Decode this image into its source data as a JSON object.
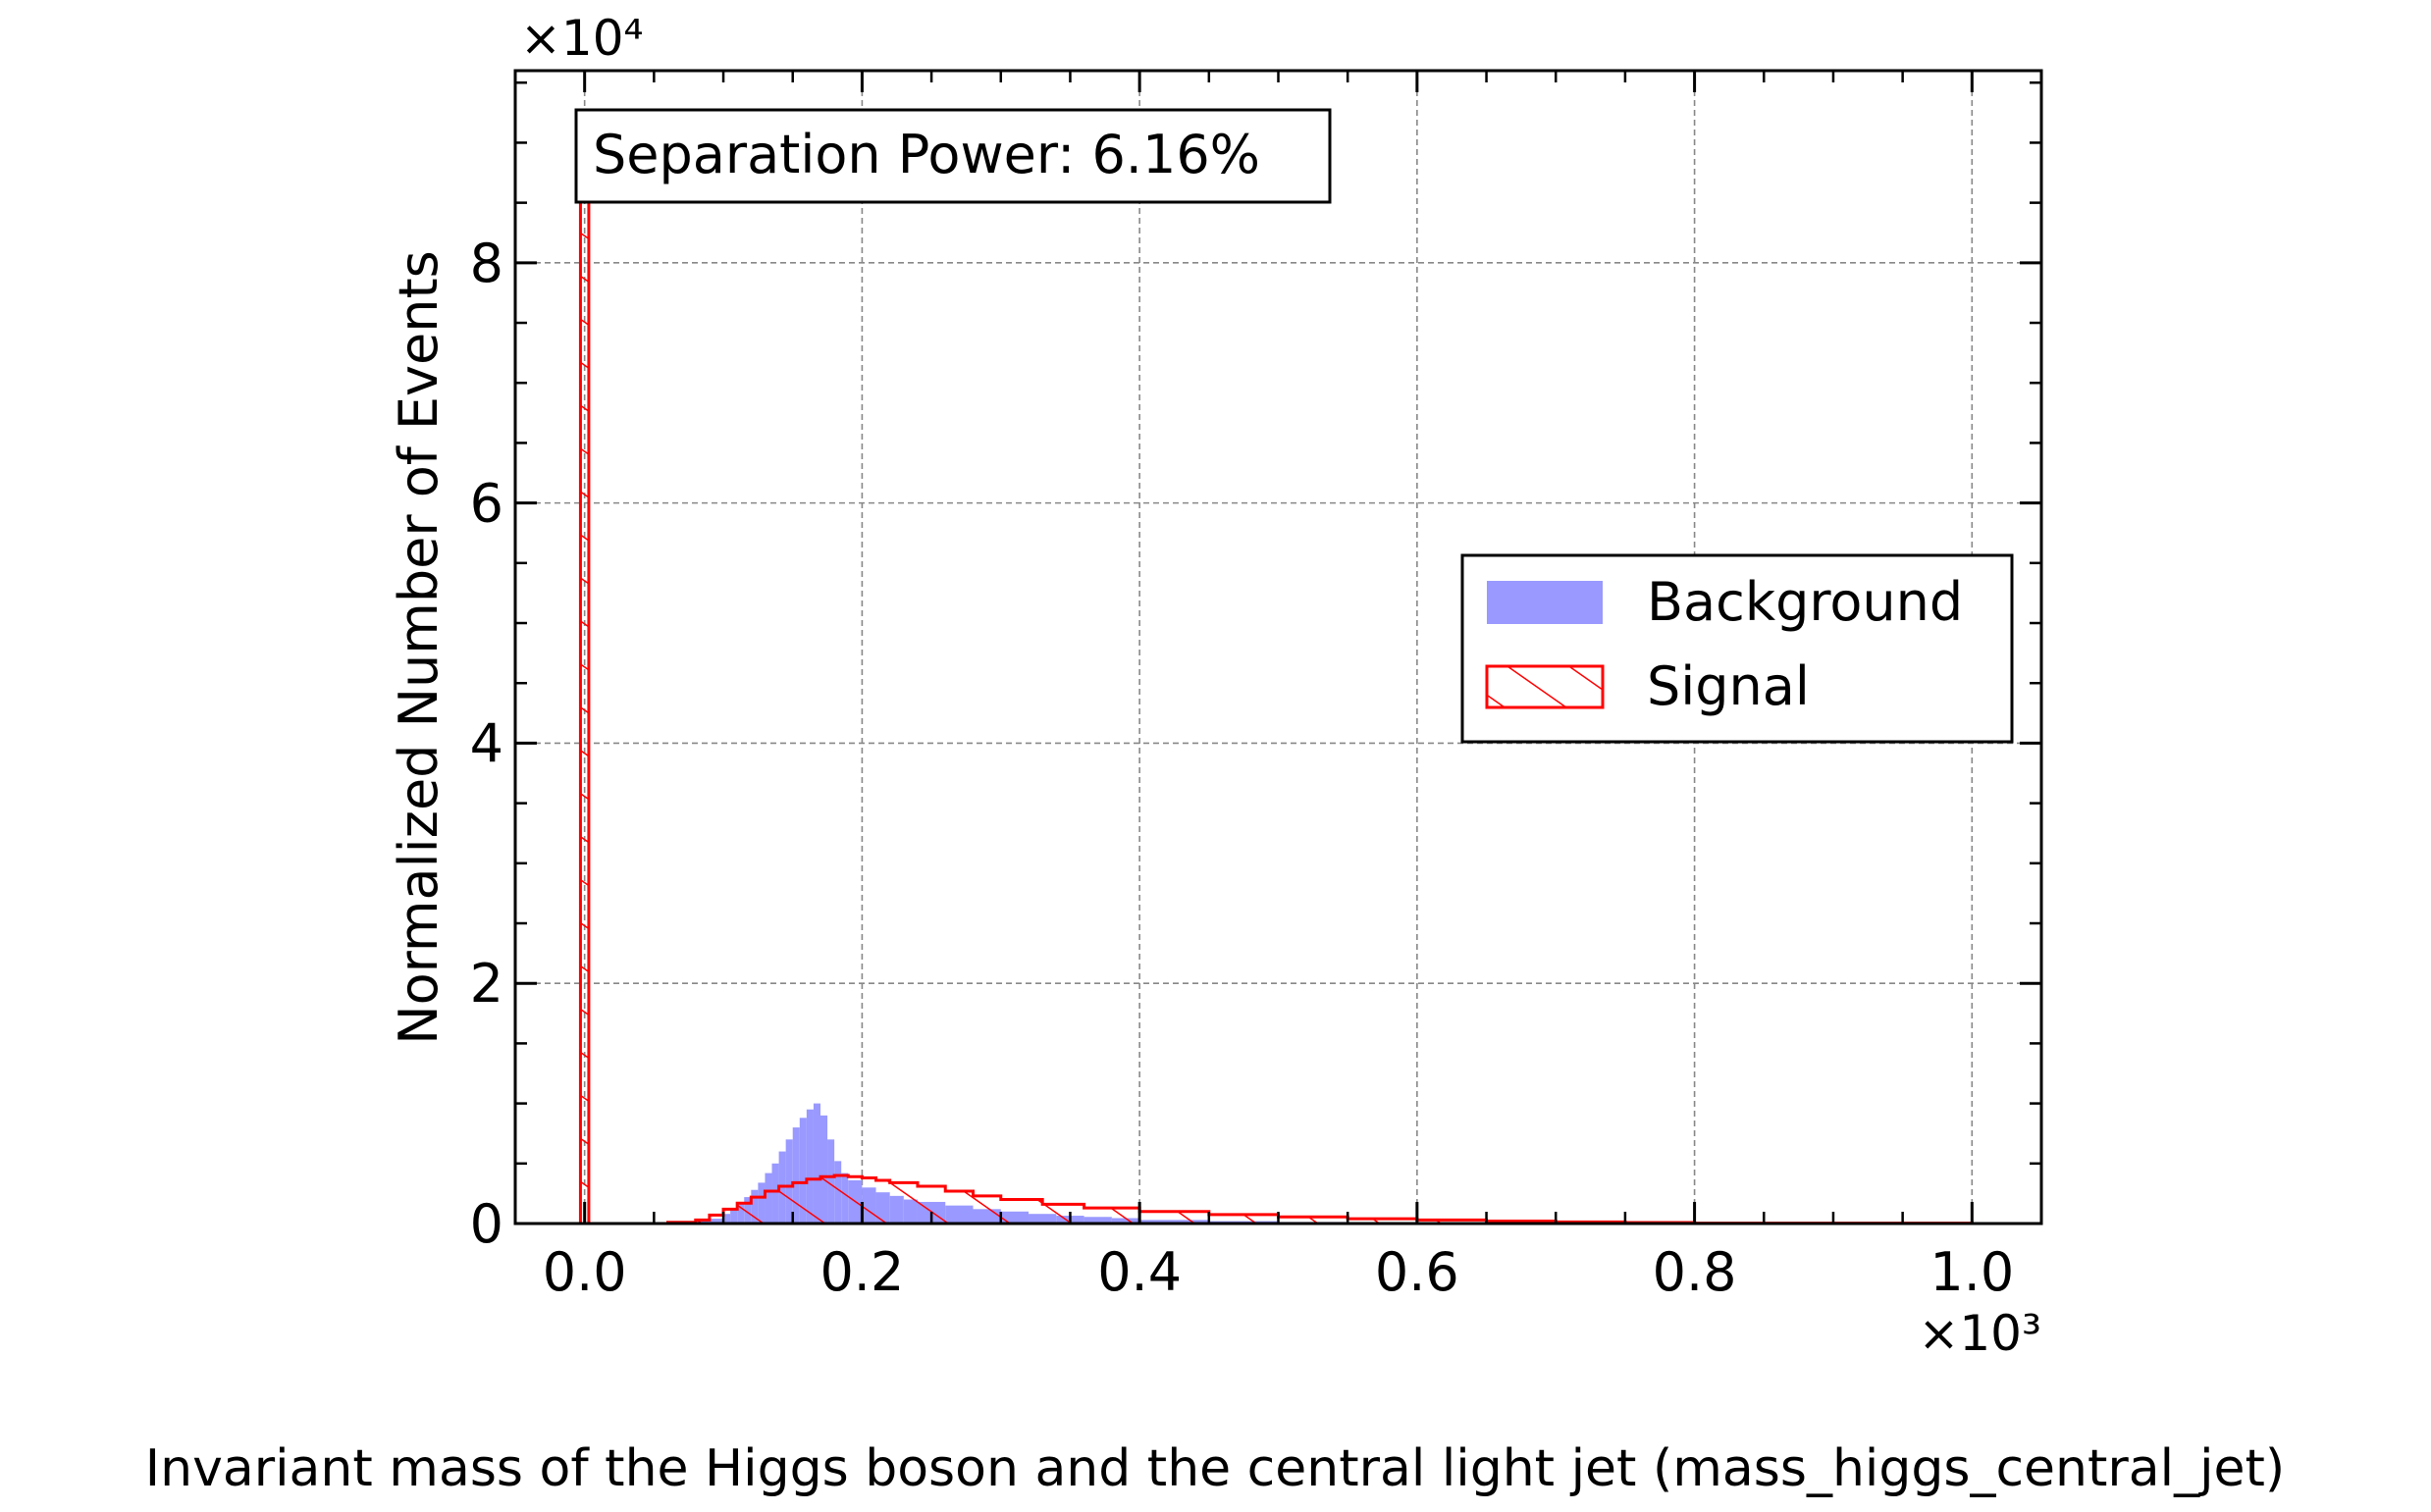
{
  "chart_data": {
    "type": "bar",
    "title": "",
    "xlabel": "Invariant mass of the Higgs boson and the central light jet (mass_higgs_central_jet)",
    "ylabel": "Normalized Number of Events",
    "x_multiplier": "×10³",
    "y_multiplier": "×10⁴",
    "xlim": [
      -0.05,
      1.05
    ],
    "ylim": [
      0,
      9.6
    ],
    "xticks": [
      "0.0",
      "0.2",
      "0.4",
      "0.6",
      "0.8",
      "1.0"
    ],
    "yticks": [
      "0",
      "2",
      "4",
      "6",
      "8"
    ],
    "grid": true,
    "legend_position": "center-right",
    "annotation": "Separation Power: 6.16%",
    "series": [
      {
        "name": "Background",
        "style": "filled",
        "color": "#9999ff",
        "bin_edges": [
          0.06,
          0.07,
          0.08,
          0.09,
          0.1,
          0.105,
          0.11,
          0.115,
          0.12,
          0.125,
          0.13,
          0.135,
          0.14,
          0.145,
          0.15,
          0.155,
          0.16,
          0.165,
          0.17,
          0.175,
          0.18,
          0.185,
          0.19,
          0.2,
          0.21,
          0.22,
          0.23,
          0.24,
          0.26,
          0.28,
          0.3,
          0.32,
          0.34,
          0.36,
          0.38,
          0.4,
          0.45,
          0.5,
          0.55,
          0.6,
          0.7,
          0.8,
          1.0
        ],
        "values": [
          0.005,
          0.01,
          0.02,
          0.04,
          0.08,
          0.12,
          0.17,
          0.22,
          0.28,
          0.34,
          0.42,
          0.5,
          0.6,
          0.7,
          0.8,
          0.88,
          0.95,
          1.0,
          0.9,
          0.7,
          0.52,
          0.42,
          0.36,
          0.3,
          0.26,
          0.23,
          0.2,
          0.18,
          0.15,
          0.12,
          0.1,
          0.08,
          0.065,
          0.055,
          0.045,
          0.03,
          0.02,
          0.013,
          0.008,
          0.004,
          0.002,
          0.001
        ]
      },
      {
        "name": "Signal",
        "style": "hatched",
        "color": "#ff0000",
        "spike": {
          "x0": -0.003,
          "x1": 0.003,
          "value": 8.6
        },
        "bin_edges": [
          0.06,
          0.08,
          0.09,
          0.1,
          0.11,
          0.12,
          0.13,
          0.14,
          0.15,
          0.16,
          0.17,
          0.18,
          0.19,
          0.2,
          0.21,
          0.22,
          0.24,
          0.26,
          0.28,
          0.3,
          0.33,
          0.36,
          0.4,
          0.45,
          0.5,
          0.55,
          0.6,
          0.65,
          0.7,
          0.75,
          0.8,
          1.0
        ],
        "values": [
          0.01,
          0.03,
          0.07,
          0.12,
          0.17,
          0.22,
          0.27,
          0.31,
          0.34,
          0.37,
          0.39,
          0.4,
          0.39,
          0.38,
          0.36,
          0.34,
          0.31,
          0.27,
          0.23,
          0.2,
          0.16,
          0.13,
          0.1,
          0.075,
          0.055,
          0.04,
          0.03,
          0.02,
          0.013,
          0.008,
          0.003
        ]
      }
    ]
  }
}
